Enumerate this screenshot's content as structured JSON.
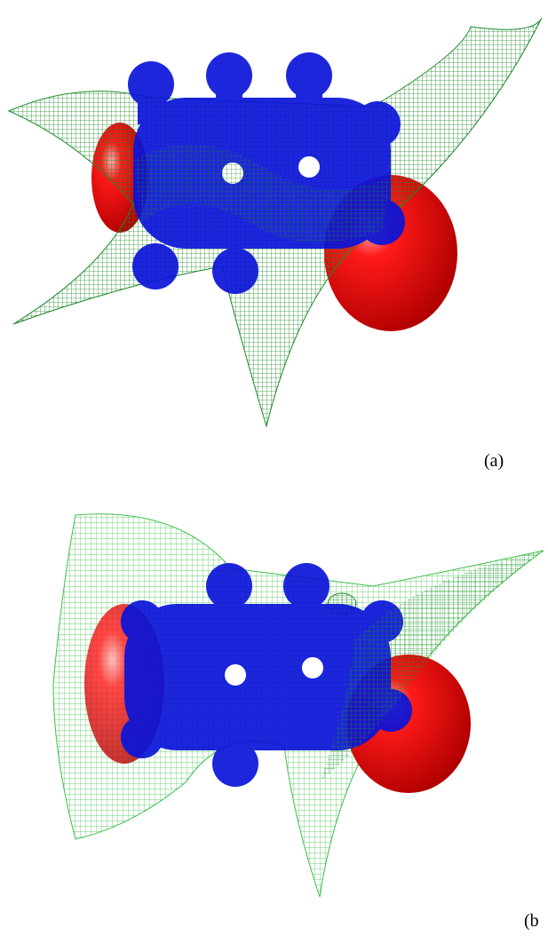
{
  "figure": {
    "panels": [
      {
        "label": "(a)"
      },
      {
        "label": "(b"
      }
    ]
  }
}
